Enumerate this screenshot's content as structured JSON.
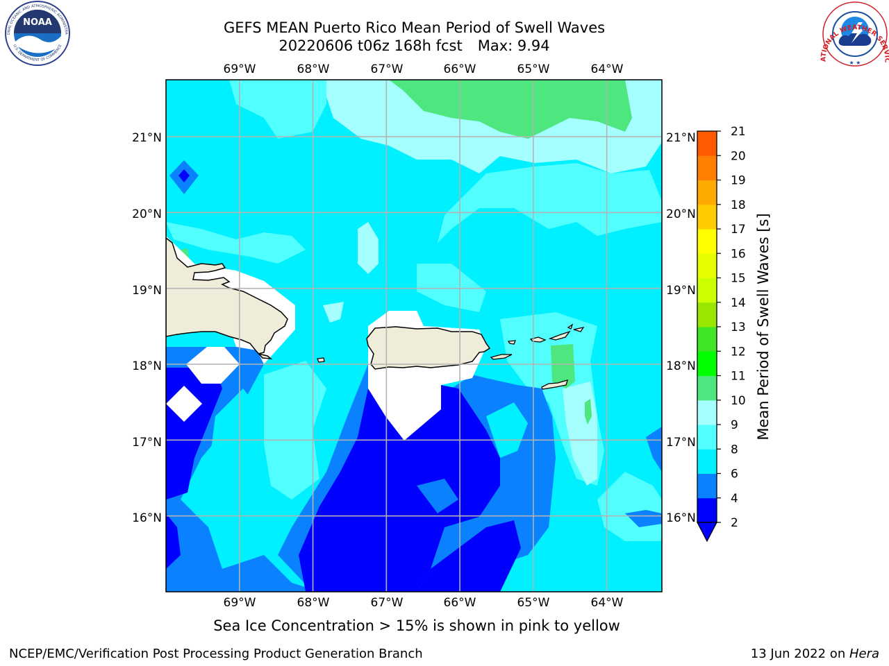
{
  "title": {
    "line1": "GEFS MEAN Puerto Rico Mean Period of Swell Waves",
    "line2_main": "20220606 t06z 168h fcst",
    "line2_max": "Max: 9.94"
  },
  "note": "Sea Ice Concentration > 15% is shown in pink to yellow",
  "footer": {
    "left": "NCEP/EMC/Verification Post Processing Product Generation Branch",
    "right_date": "13 Jun 2022 on ",
    "right_host": "Hera"
  },
  "logos": {
    "noaa_label": "NOAA",
    "noaa_ring_top": "NATIONAL OCEANIC AND ATMOSPHERIC ADMINISTRATION",
    "noaa_ring_bottom": "U.S. DEPARTMENT OF COMMERCE",
    "nws_ring": "NATIONAL WEATHER SERVICE"
  },
  "chart_data": {
    "type": "heatmap",
    "variable": "Mean Period of Swell Waves",
    "colorbar_label": "Mean Period of Swell Waves [s]",
    "lon_ticks": [
      "69°W",
      "68°W",
      "67°W",
      "66°W",
      "65°W",
      "64°W"
    ],
    "lat_ticks": [
      "21°N",
      "20°N",
      "19°N",
      "18°N",
      "17°N",
      "16°N"
    ],
    "lon_values": [
      -69,
      -68,
      -67,
      -66,
      -65,
      -64
    ],
    "lat_values": [
      21,
      20,
      19,
      18,
      17,
      16
    ],
    "xlim": [
      -70.0,
      -63.25
    ],
    "ylim": [
      15.0,
      21.75
    ],
    "grid": true,
    "max_value": 9.94,
    "colorbar_levels": [
      2,
      4,
      6,
      8,
      9,
      10,
      11,
      12,
      13,
      14,
      15,
      16,
      17,
      18,
      19,
      20,
      21
    ],
    "colorbar_colors": [
      "#0000ff",
      "#0a82ff",
      "#00f0ff",
      "#52ffff",
      "#a6ffff",
      "#4de67f",
      "#00ff00",
      "#40e626",
      "#99e600",
      "#ccff00",
      "#e6ff00",
      "#ffff00",
      "#ffcc00",
      "#ffaa00",
      "#ff8000",
      "#ff5a00",
      "#ff0000"
    ],
    "colorbar_extend": "min",
    "colorbar_under_color": "#0000ff",
    "land_color": "#efedd9",
    "missing_color": "#ffffff"
  }
}
